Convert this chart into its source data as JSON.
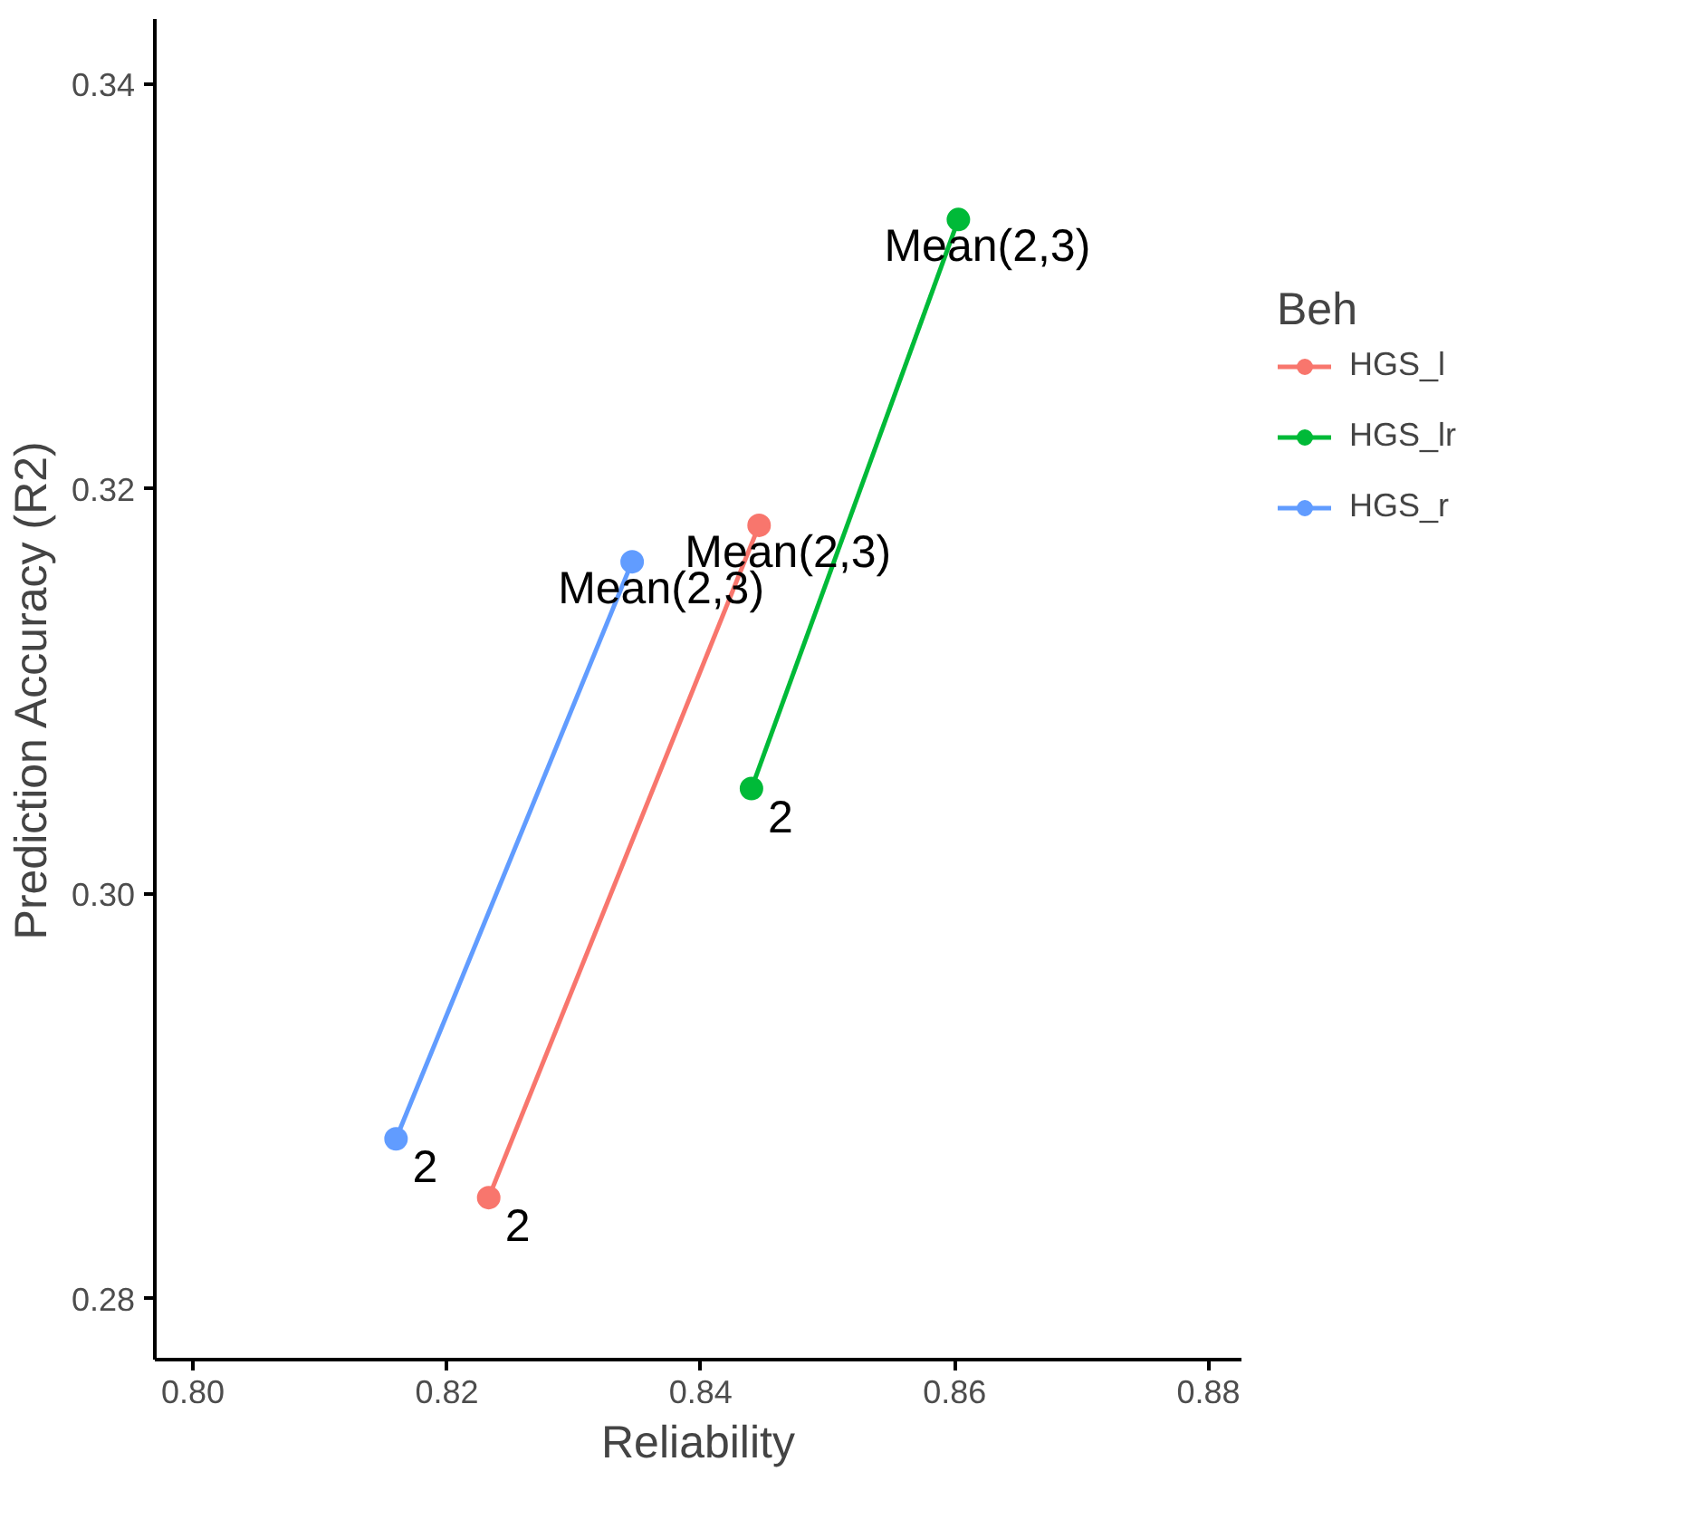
{
  "chart_data": {
    "type": "line",
    "xlabel": "Reliability",
    "ylabel": "Prediction Accuracy (R2)",
    "legend_title": "Beh",
    "legend": "right",
    "marker": "circle",
    "line_style": "solid",
    "grid": false,
    "xlim": [
      0.797,
      0.8826
    ],
    "ylim": [
      0.277,
      0.3432
    ],
    "xticks": [
      {
        "value": 0.8,
        "label": "0.80"
      },
      0.82,
      0.84,
      0.86,
      0.88
    ],
    "yticks": [
      0.28,
      {
        "value": 0.3,
        "label": "0.30"
      },
      0.32,
      0.34
    ],
    "series": [
      {
        "name": "HGS_l",
        "color": "#f8766d",
        "x": [
          0.8233,
          0.8446
        ],
        "values": [
          0.285,
          0.3182
        ]
      },
      {
        "name": "HGS_lr",
        "color": "#00ba38",
        "x": [
          0.844,
          0.8603
        ],
        "values": [
          0.3052,
          0.3333
        ]
      },
      {
        "name": "HGS_r",
        "color": "#619cff",
        "x": [
          0.816,
          0.8346
        ],
        "values": [
          0.2879,
          0.3164
        ]
      }
    ],
    "annotations": [
      {
        "text": "2",
        "x": 0.8233,
        "y": 0.285
      },
      {
        "text": "2",
        "x": 0.816,
        "y": 0.2879
      },
      {
        "text": "2",
        "x": 0.844,
        "y": 0.3052
      },
      {
        "text": "Mean(2,3)",
        "x": 0.8603,
        "y": 0.3333
      },
      {
        "text": "Mean(2,3)",
        "x": 0.8446,
        "y": 0.3182
      },
      {
        "text": "Mean(2,3)",
        "x": 0.8346,
        "y": 0.3164
      }
    ]
  }
}
